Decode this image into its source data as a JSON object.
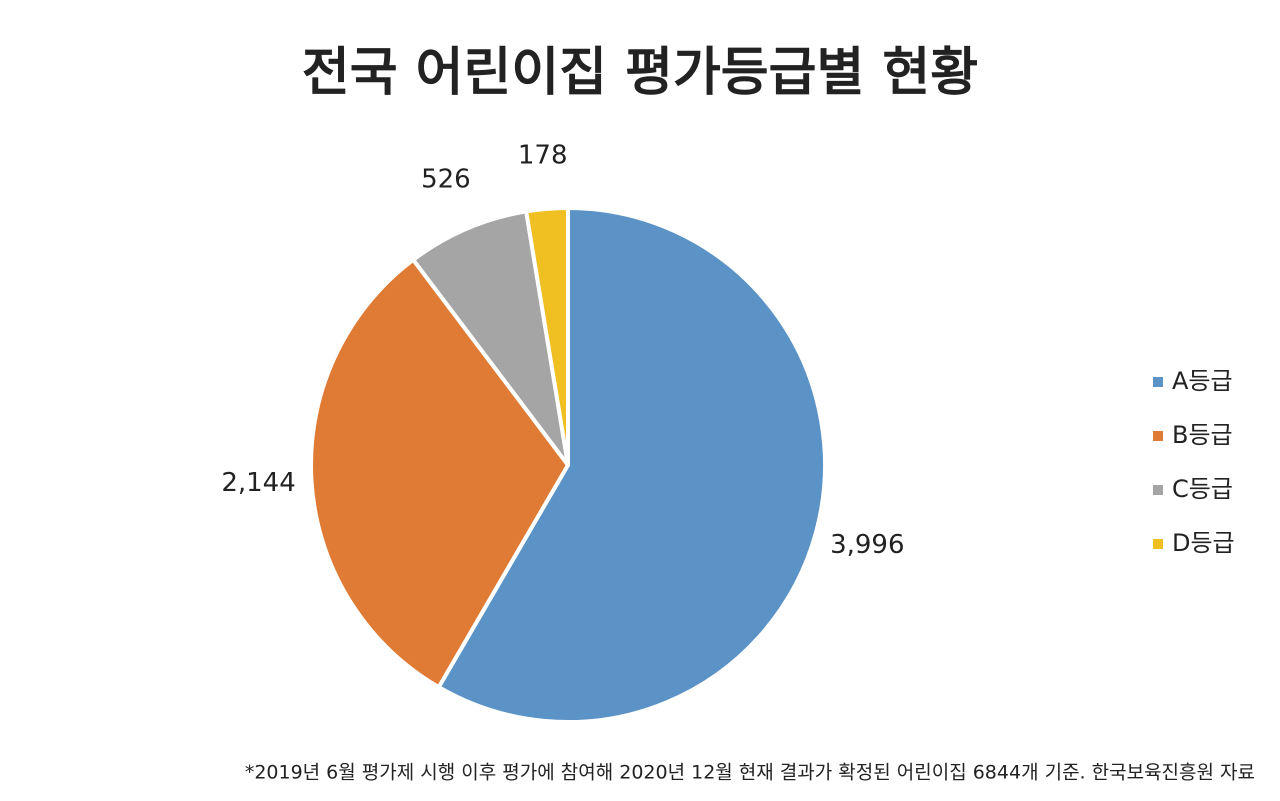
{
  "chart_data": {
    "type": "pie",
    "title": "전국 어린이집 평가등급별 현황",
    "categories": [
      "A등급",
      "B등급",
      "C등급",
      "D등급"
    ],
    "values": [
      3996,
      2144,
      526,
      178
    ],
    "value_labels": [
      "3,996",
      "2,144",
      "526",
      "178"
    ],
    "colors": [
      "#5b93c7",
      "#e07b35",
      "#a5a5a5",
      "#f0bf22"
    ],
    "legend": "right",
    "note": "*2019년 6월 평가제 시행 이후 평가에 참여해 2020년 12월 현재 결과가 확정된 어린이집 6844개 기준. 한국보육진흥원 자료"
  }
}
